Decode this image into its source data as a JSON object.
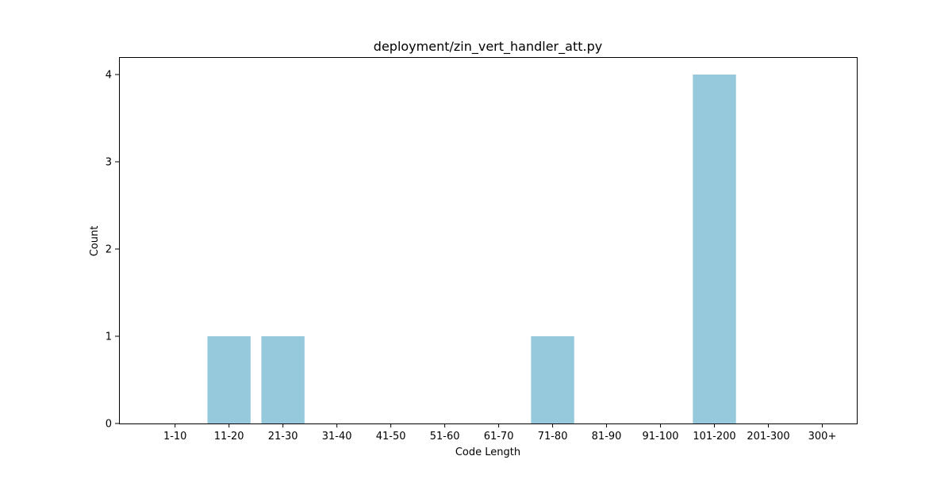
{
  "chart_data": {
    "type": "bar",
    "title": "deployment/zin_vert_handler_att.py",
    "xlabel": "Code Length",
    "ylabel": "Count",
    "categories": [
      "1-10",
      "11-20",
      "21-30",
      "31-40",
      "41-50",
      "51-60",
      "61-70",
      "71-80",
      "81-90",
      "91-100",
      "101-200",
      "201-300",
      "300+"
    ],
    "values": [
      0,
      1,
      1,
      0,
      0,
      0,
      0,
      1,
      0,
      0,
      4,
      0,
      0
    ],
    "ylim": [
      0,
      4.2
    ],
    "yticks": [
      0,
      1,
      2,
      3,
      4
    ],
    "bar_color": "#96c9dc",
    "grid": false,
    "legend": "none"
  }
}
